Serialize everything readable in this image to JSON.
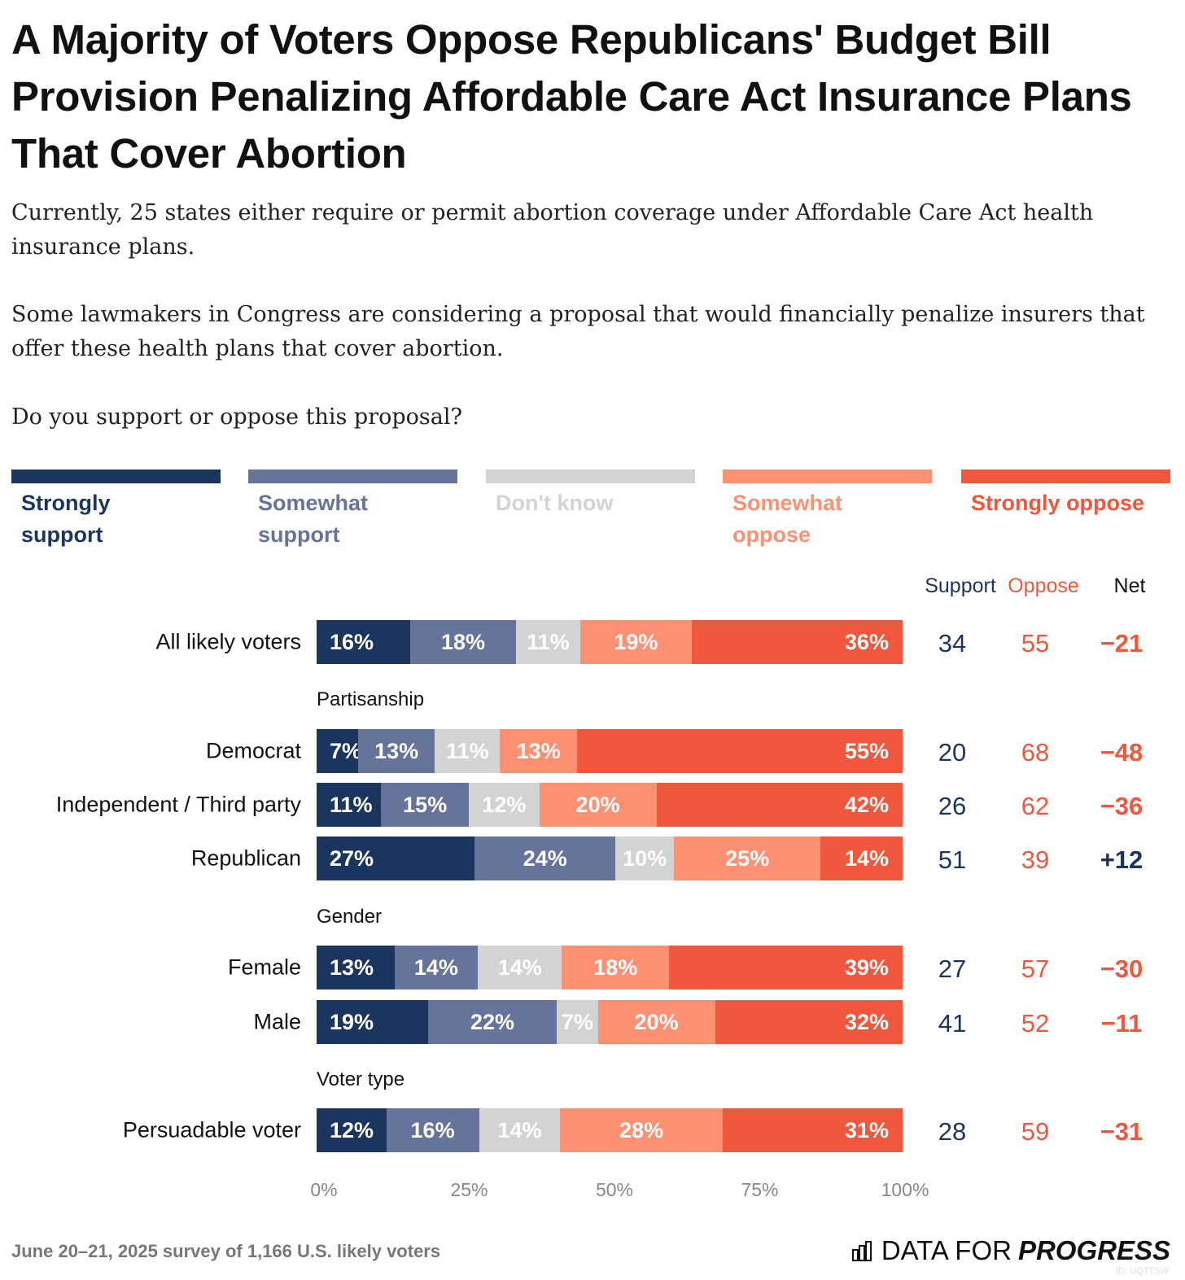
{
  "title": "A Majority of Voters Oppose Republicans' Budget Bill Provision Penalizing Affordable Care Act Insurance Plans That Cover Abortion",
  "subtitle": [
    "Currently, 25 states either require or permit abortion coverage under Affordable Care Act health insurance plans.",
    "Some lawmakers in Congress are considering a proposal that would financially penalize insurers that offer these health plans that cover abortion.",
    "Do you support or oppose this proposal?"
  ],
  "footer": "June 20–21, 2025 survey of 1,166 U.S. likely voters",
  "logo": {
    "light": "DATA FOR",
    "bold": "PROGRESS",
    "id": "ID: UQTTSW"
  },
  "chart_data": {
    "type": "bar",
    "orientation": "horizontal",
    "stacked": true,
    "series": [
      {
        "name": "Strongly support",
        "color": "#1c355e"
      },
      {
        "name": "Somewhat support",
        "color": "#66739a"
      },
      {
        "name": "Don't know",
        "color": "#d1d3d4"
      },
      {
        "name": "Somewhat oppose",
        "color": "#fe9073"
      },
      {
        "name": "Strongly oppose",
        "color": "#f0573c"
      }
    ],
    "columns": {
      "support": "Support",
      "oppose": "Oppose",
      "net": "Net"
    },
    "rows": [
      {
        "group": null,
        "label": "All likely voters",
        "values": [
          16,
          18,
          11,
          19,
          36
        ],
        "support": "34",
        "oppose": "55",
        "net": "−21"
      },
      {
        "group": "Partisanship",
        "label": "Democrat",
        "values": [
          7,
          13,
          11,
          13,
          55
        ],
        "support": "20",
        "oppose": "68",
        "net": "−48"
      },
      {
        "group": null,
        "label": "Independent / Third party",
        "values": [
          11,
          15,
          12,
          20,
          42
        ],
        "support": "26",
        "oppose": "62",
        "net": "−36"
      },
      {
        "group": null,
        "label": "Republican",
        "values": [
          27,
          24,
          10,
          25,
          14
        ],
        "support": "51",
        "oppose": "39",
        "net": "+12"
      },
      {
        "group": "Gender",
        "label": "Female",
        "values": [
          13,
          14,
          14,
          18,
          39
        ],
        "support": "27",
        "oppose": "57",
        "net": "−30"
      },
      {
        "group": null,
        "label": "Male",
        "values": [
          19,
          22,
          7,
          20,
          32
        ],
        "support": "41",
        "oppose": "52",
        "net": "−11"
      },
      {
        "group": "Voter type",
        "label": "Persuadable voter",
        "values": [
          12,
          16,
          14,
          28,
          31
        ],
        "support": "28",
        "oppose": "59",
        "net": "−31"
      }
    ],
    "xticks": [
      "0%",
      "25%",
      "50%",
      "75%",
      "100%"
    ],
    "xlim": [
      0,
      100
    ]
  }
}
